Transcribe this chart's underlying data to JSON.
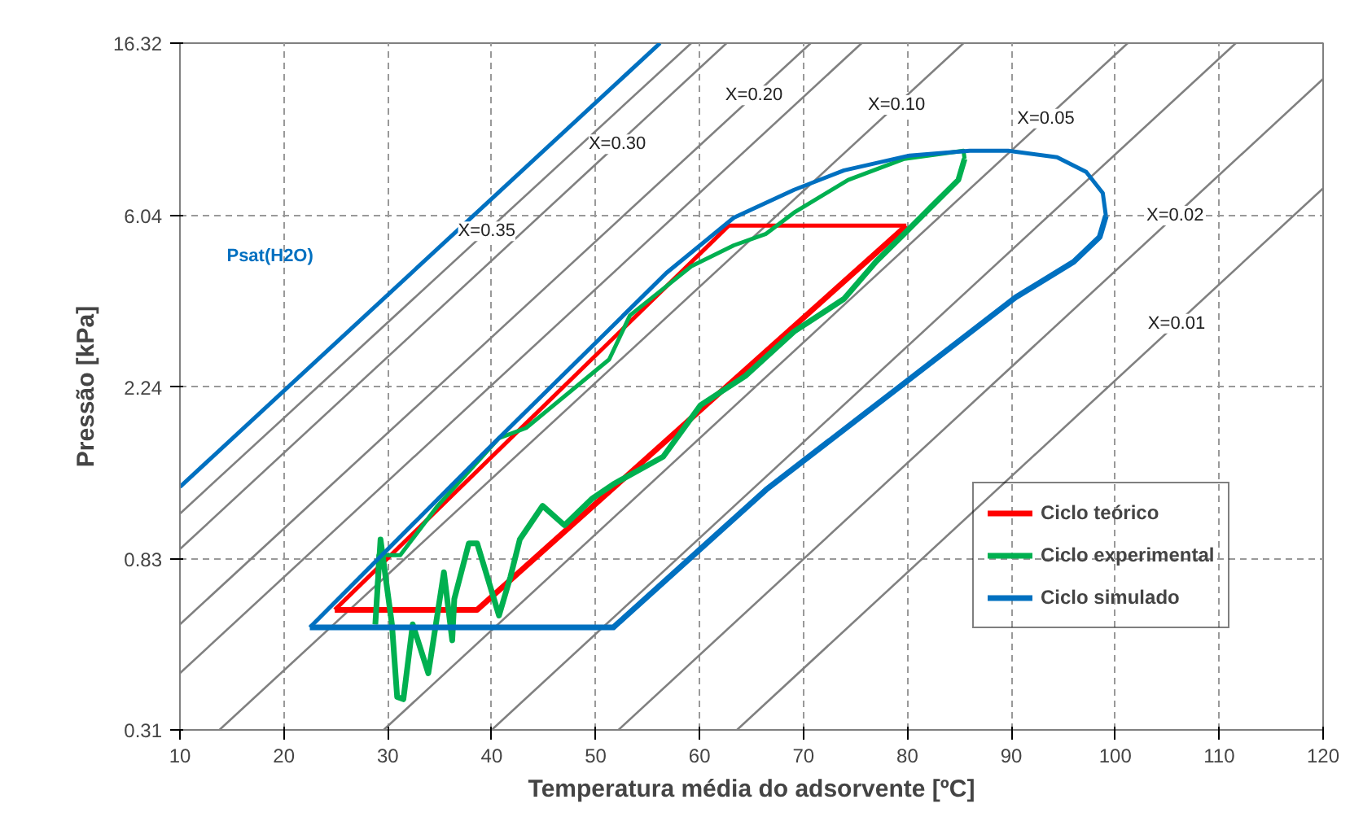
{
  "chart_data": {
    "type": "line",
    "xlabel": "Temperatura média do adsorvente [ºC]",
    "ylabel": "Pressão [kPa]",
    "log": "y",
    "xlim": [
      10,
      120
    ],
    "ylim": [
      0.31,
      16.32
    ],
    "xticks": [
      10,
      20,
      30,
      40,
      50,
      60,
      70,
      80,
      90,
      100,
      110,
      120
    ],
    "yticks": [
      0.31,
      0.83,
      2.24,
      6.04,
      16.32
    ],
    "grid": true,
    "legend": "bottom right",
    "series": [
      {
        "color": "#808080",
        "x": [
          10,
          59.2
        ],
        "values": [
          1.08,
          16.32
        ]
      },
      {
        "color": "#808080",
        "x": [
          10,
          62.6
        ],
        "values": [
          0.88,
          16.32
        ]
      },
      {
        "color": "#808080",
        "x": [
          10,
          70.7
        ],
        "values": [
          0.57,
          16.32
        ]
      },
      {
        "color": "#808080",
        "x": [
          10,
          75.6
        ],
        "values": [
          0.43,
          16.32
        ]
      },
      {
        "color": "#808080",
        "x": [
          13.8,
          85.4
        ],
        "values": [
          0.31,
          16.32
        ]
      },
      {
        "color": "#808080",
        "x": [
          29.6,
          101.2
        ],
        "values": [
          0.31,
          16.32
        ]
      },
      {
        "color": "#808080",
        "x": [
          40.0,
          111.6
        ],
        "values": [
          0.31,
          16.32
        ]
      },
      {
        "color": "#808080",
        "x": [
          52.2,
          120
        ],
        "values": [
          0.31,
          13.27
        ]
      },
      {
        "color": "#808080",
        "x": [
          63.6,
          120
        ],
        "values": [
          0.31,
          7.06
        ]
      },
      {
        "color": "#0070c0",
        "x": [
          10,
          56.2
        ],
        "values": [
          1.26,
          16.32
        ]
      },
      {
        "name": "Ciclo teórico",
        "color": "#ff0000",
        "x": [
          24.9,
          38.6,
          79.9
        ],
        "values": [
          0.62,
          0.62,
          5.69
        ]
      },
      {
        "color": "#ff0000",
        "x": [
          24.9,
          62.8,
          79.9
        ],
        "values": [
          0.62,
          5.69,
          5.69
        ]
      },
      {
        "name": "Ciclo experimental",
        "color": "#00b050",
        "x": [
          28.8,
          29.3,
          30.4,
          30.9,
          31.5,
          32.4,
          33.9,
          35.4,
          36.2,
          36.4,
          37.8,
          38.6,
          40.7,
          41.8,
          42.7,
          44.9,
          47.0,
          49.7,
          51.7,
          56.5,
          60.1,
          64.4,
          69.1,
          73.9,
          77.0,
          79.7,
          82.2,
          84.9,
          85.5
        ],
        "values": [
          0.57,
          0.93,
          0.57,
          0.375,
          0.37,
          0.57,
          0.43,
          0.77,
          0.52,
          0.66,
          0.91,
          0.91,
          0.6,
          0.75,
          0.93,
          1.13,
          1.01,
          1.18,
          1.28,
          1.5,
          2.02,
          2.39,
          3.09,
          3.73,
          4.63,
          5.43,
          6.31,
          7.41,
          8.37
        ]
      },
      {
        "color": "#00b050",
        "x": [
          28.8,
          29.1,
          31.2,
          34.8,
          40.7,
          43.3,
          51.3,
          53.3,
          59.2,
          63.3,
          66.4,
          69.1,
          74.3,
          79.7,
          85.4,
          85.5
        ],
        "values": [
          0.57,
          0.85,
          0.85,
          1.13,
          1.67,
          1.77,
          2.63,
          3.39,
          4.5,
          5.08,
          5.43,
          6.14,
          7.41,
          8.37,
          8.77,
          8.37
        ]
      },
      {
        "name": "Ciclo simulado",
        "color": "#0070c0",
        "x": [
          22.5,
          51.7,
          66.4,
          78.6,
          90.4,
          96.0,
          98.5,
          99.1
        ],
        "values": [
          0.56,
          0.56,
          1.24,
          2.18,
          3.76,
          4.62,
          5.33,
          6.02
        ]
      },
      {
        "color": "#0070c0",
        "x": [
          22.5,
          39.1,
          56.8,
          63.3,
          69.1,
          73.9,
          80.2,
          86.0,
          89.7,
          94.4,
          97.2,
          98.8,
          99.1
        ],
        "values": [
          0.56,
          1.52,
          4.33,
          5.96,
          7.0,
          7.83,
          8.53,
          8.77,
          8.77,
          8.45,
          7.76,
          6.87,
          6.02
        ]
      }
    ],
    "annotations": [
      "Psat(H2O)",
      "X=0.35",
      "X=0.30",
      "X=0.20",
      "X=0.10",
      "X=0.05",
      "X=0.02",
      "X=0.01"
    ]
  }
}
